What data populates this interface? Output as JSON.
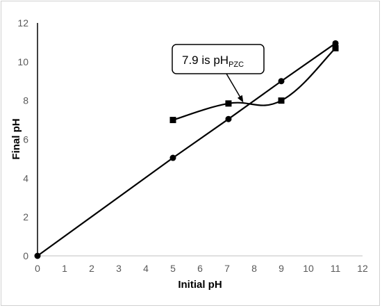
{
  "chart_data": {
    "type": "line",
    "xlabel": "Initial pH",
    "ylabel": "Final pH",
    "xlim": [
      0,
      12
    ],
    "ylim": [
      0,
      12
    ],
    "xticks": [
      "0",
      "1",
      "2",
      "3",
      "4",
      "5",
      "6",
      "7",
      "8",
      "9",
      "10",
      "11",
      "12"
    ],
    "yticks": [
      "0",
      "2",
      "4",
      "6",
      "8",
      "10",
      "12"
    ],
    "grid": false,
    "legend": "none",
    "series": [
      {
        "marker": "circle",
        "smooth": false,
        "color": "#000000",
        "x": [
          0,
          5,
          7.05,
          9,
          11
        ],
        "y": [
          0,
          5.05,
          7.05,
          9,
          10.95
        ]
      },
      {
        "marker": "square",
        "smooth": true,
        "color": "#000000",
        "x": [
          5,
          7.05,
          9,
          11
        ],
        "y": [
          7.0,
          7.85,
          8.0,
          10.7
        ]
      }
    ],
    "annotation": {
      "text_main": "7.9 is pH",
      "text_sub": "PZC",
      "points_to": [
        7.6,
        7.9
      ]
    }
  }
}
